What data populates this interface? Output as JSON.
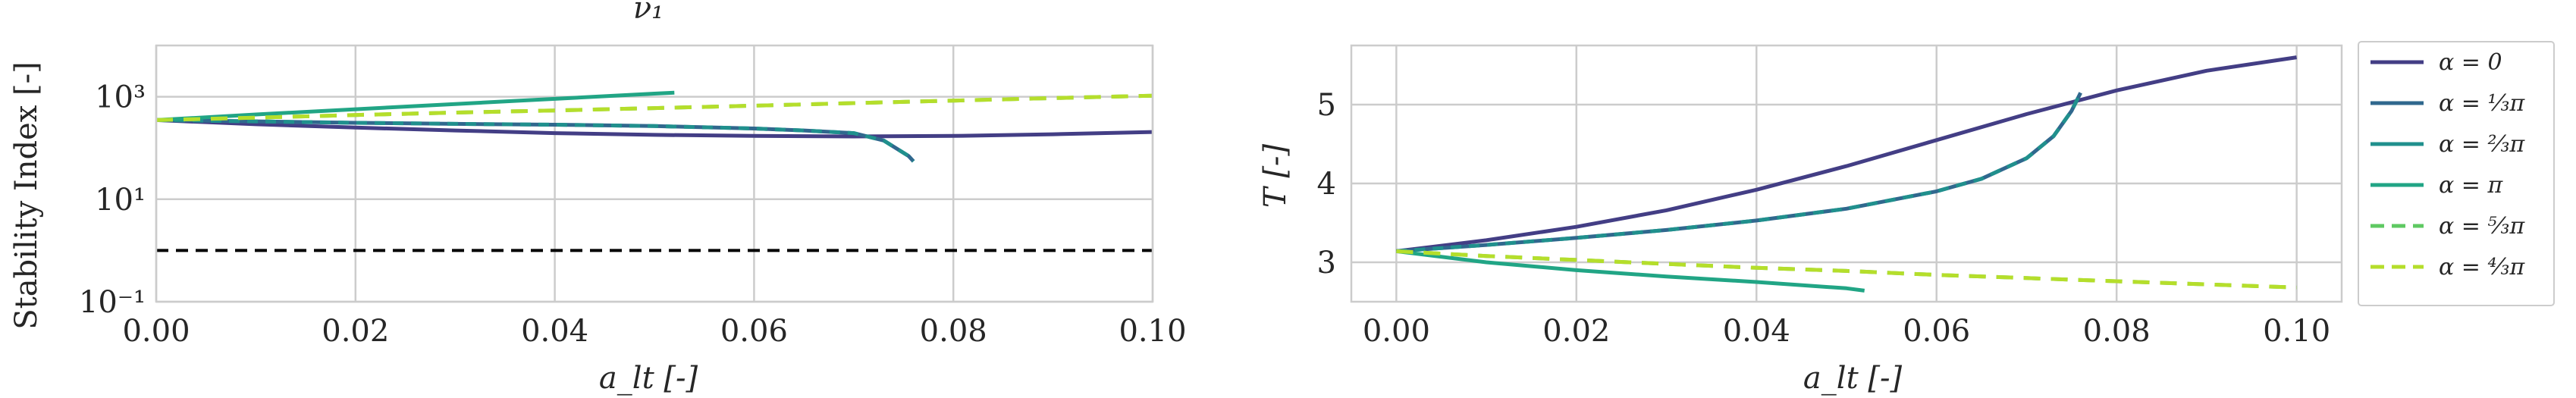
{
  "colors": {
    "alpha_0": "#433e85",
    "alpha_1_3pi": "#30688e",
    "alpha_2_3pi": "#20908d",
    "alpha_pi": "#21a585",
    "alpha_5_3pi": "#5ec962",
    "alpha_4_3pi": "#b5de2b",
    "reference": "#000000",
    "grid": "#cccccc",
    "frame": "#cccccc"
  },
  "legend": {
    "placement": "right, outside",
    "entries": [
      {
        "key": "alpha_0",
        "label": "α = 0",
        "style": "solid"
      },
      {
        "key": "alpha_1_3pi",
        "label": "α = ⅓π",
        "style": "solid"
      },
      {
        "key": "alpha_2_3pi",
        "label": "α = ⅔π",
        "style": "solid"
      },
      {
        "key": "alpha_pi",
        "label": "α = π",
        "style": "solid"
      },
      {
        "key": "alpha_5_3pi",
        "label": "α = ⁵⁄₃π",
        "style": "dashed"
      },
      {
        "key": "alpha_4_3pi",
        "label": "α = ⁴⁄₃π",
        "style": "dashed"
      }
    ]
  },
  "chart_data": [
    {
      "type": "line",
      "title": "ν₁",
      "xlabel": "a_lt [-]",
      "ylabel": "Stability Index [-]",
      "xlim": [
        0.0,
        0.1
      ],
      "ylim_log10": [
        -1,
        4
      ],
      "yscale": "log",
      "grid": true,
      "xticks": [
        "0.00",
        "0.02",
        "0.04",
        "0.06",
        "0.08",
        "0.10"
      ],
      "yticks": [
        {
          "value_log10": -1,
          "label": "10⁻¹"
        },
        {
          "value_log10": 1,
          "label": "10¹"
        },
        {
          "value_log10": 3,
          "label": "10³"
        }
      ],
      "reference_line": {
        "y": 1,
        "style": "dashed"
      },
      "series": [
        {
          "key": "alpha_0",
          "x": [
            0,
            0.01,
            0.02,
            0.03,
            0.04,
            0.05,
            0.06,
            0.07,
            0.08,
            0.09,
            0.1
          ],
          "y": [
            350,
            290,
            250,
            220,
            195,
            180,
            172,
            168,
            172,
            185,
            205
          ]
        },
        {
          "key": "alpha_1_3pi",
          "x": [
            0,
            0.01,
            0.02,
            0.03,
            0.04,
            0.05,
            0.06,
            0.065,
            0.07,
            0.073,
            0.0755,
            0.076
          ],
          "y": [
            350,
            330,
            310,
            295,
            285,
            268,
            240,
            220,
            195,
            140,
            70,
            55
          ]
        },
        {
          "key": "alpha_2_3pi",
          "x": [
            0,
            0.01,
            0.02,
            0.03,
            0.04,
            0.05,
            0.06,
            0.065,
            0.07,
            0.073,
            0.0755,
            0.076
          ],
          "y": [
            350,
            330,
            310,
            295,
            285,
            268,
            240,
            220,
            195,
            140,
            70,
            55
          ]
        },
        {
          "key": "alpha_pi",
          "x": [
            0,
            0.01,
            0.02,
            0.03,
            0.04,
            0.05,
            0.052
          ],
          "y": [
            350,
            450,
            570,
            720,
            910,
            1150,
            1200
          ]
        },
        {
          "key": "alpha_5_3pi",
          "x": [
            0,
            0.01,
            0.02,
            0.03,
            0.04,
            0.05,
            0.06,
            0.07,
            0.08,
            0.09,
            0.1
          ],
          "y": [
            350,
            390,
            440,
            490,
            540,
            600,
            670,
            750,
            840,
            940,
            1050
          ]
        },
        {
          "key": "alpha_4_3pi",
          "x": [
            0,
            0.01,
            0.02,
            0.03,
            0.04,
            0.05,
            0.06,
            0.07,
            0.08,
            0.09,
            0.1
          ],
          "y": [
            350,
            390,
            440,
            490,
            540,
            600,
            670,
            750,
            840,
            940,
            1050
          ]
        }
      ]
    },
    {
      "type": "line",
      "xlabel": "a_lt [-]",
      "ylabel": "T [-]",
      "xlim": [
        -0.005,
        0.105
      ],
      "ylim": [
        2.5,
        5.75
      ],
      "grid": true,
      "xticks": [
        "0.00",
        "0.02",
        "0.04",
        "0.06",
        "0.08",
        "0.10"
      ],
      "yticks": [
        "3",
        "4",
        "5"
      ],
      "series": [
        {
          "key": "alpha_0",
          "x": [
            0,
            0.01,
            0.02,
            0.03,
            0.04,
            0.05,
            0.06,
            0.07,
            0.08,
            0.09,
            0.1
          ],
          "y": [
            3.14,
            3.28,
            3.45,
            3.66,
            3.92,
            4.22,
            4.55,
            4.88,
            5.18,
            5.43,
            5.6
          ]
        },
        {
          "key": "alpha_1_3pi",
          "x": [
            0,
            0.01,
            0.02,
            0.03,
            0.04,
            0.05,
            0.06,
            0.065,
            0.07,
            0.073,
            0.075,
            0.076
          ],
          "y": [
            3.14,
            3.22,
            3.31,
            3.41,
            3.53,
            3.68,
            3.9,
            4.06,
            4.32,
            4.6,
            4.92,
            5.15
          ]
        },
        {
          "key": "alpha_2_3pi",
          "x": [
            0,
            0.01,
            0.02,
            0.03,
            0.04,
            0.05,
            0.06,
            0.065,
            0.07,
            0.073,
            0.075,
            0.076
          ],
          "y": [
            3.14,
            3.22,
            3.31,
            3.41,
            3.53,
            3.68,
            3.9,
            4.06,
            4.32,
            4.6,
            4.92,
            5.15
          ]
        },
        {
          "key": "alpha_pi",
          "x": [
            0,
            0.01,
            0.02,
            0.03,
            0.04,
            0.05,
            0.052
          ],
          "y": [
            3.14,
            3.0,
            2.9,
            2.82,
            2.75,
            2.67,
            2.64
          ]
        },
        {
          "key": "alpha_5_3pi",
          "x": [
            0,
            0.01,
            0.02,
            0.03,
            0.04,
            0.05,
            0.06,
            0.07,
            0.08,
            0.09,
            0.1
          ],
          "y": [
            3.14,
            3.08,
            3.03,
            2.98,
            2.93,
            2.89,
            2.84,
            2.8,
            2.76,
            2.72,
            2.68
          ]
        },
        {
          "key": "alpha_4_3pi",
          "x": [
            0,
            0.01,
            0.02,
            0.03,
            0.04,
            0.05,
            0.06,
            0.07,
            0.08,
            0.09,
            0.1
          ],
          "y": [
            3.14,
            3.08,
            3.03,
            2.98,
            2.93,
            2.89,
            2.84,
            2.8,
            2.76,
            2.72,
            2.68
          ]
        }
      ]
    }
  ]
}
